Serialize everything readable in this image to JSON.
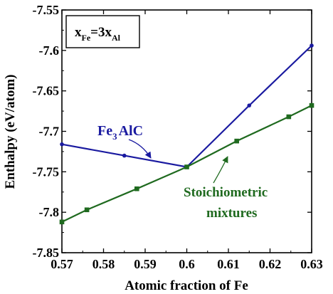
{
  "chart_data": {
    "type": "line",
    "xlabel": "Atomic fraction of Fe",
    "ylabel": "Enthalpy (eV/atom)",
    "xlim": [
      0.57,
      0.63
    ],
    "ylim": [
      -7.85,
      -7.55
    ],
    "x_ticks": [
      "0.57",
      "0.58",
      "0.59",
      "0.6",
      "0.61",
      "0.62",
      "0.63"
    ],
    "y_ticks": [
      "-7.55",
      "-7.6",
      "-7.65",
      "-7.7",
      "-7.75",
      "-7.8",
      "-7.85"
    ],
    "grid": false,
    "box_label": {
      "x": "x",
      "x_sub": "Fe",
      "eq": "=3x",
      "eq_sub": "Al"
    },
    "series": [
      {
        "name": "Fe3AlC",
        "label_main": "Fe",
        "label_sub": "3",
        "label_rest": "AlC",
        "color": "#1a1aa0",
        "marker": "circle",
        "points": [
          {
            "x": 0.57,
            "y": -7.716
          },
          {
            "x": 0.585,
            "y": -7.73
          },
          {
            "x": 0.6,
            "y": -7.744
          },
          {
            "x": 0.615,
            "y": -7.668
          },
          {
            "x": 0.63,
            "y": -7.594
          }
        ]
      },
      {
        "name": "Stoichiometric mixtures",
        "label_line1": "Stoichiometric",
        "label_line2": "mixtures",
        "color": "#1f6a1f",
        "marker": "square",
        "points": [
          {
            "x": 0.57,
            "y": -7.812
          },
          {
            "x": 0.576,
            "y": -7.797
          },
          {
            "x": 0.588,
            "y": -7.771
          },
          {
            "x": 0.6,
            "y": -7.744
          },
          {
            "x": 0.612,
            "y": -7.712
          },
          {
            "x": 0.6245,
            "y": -7.682
          },
          {
            "x": 0.63,
            "y": -7.668
          }
        ]
      }
    ]
  }
}
